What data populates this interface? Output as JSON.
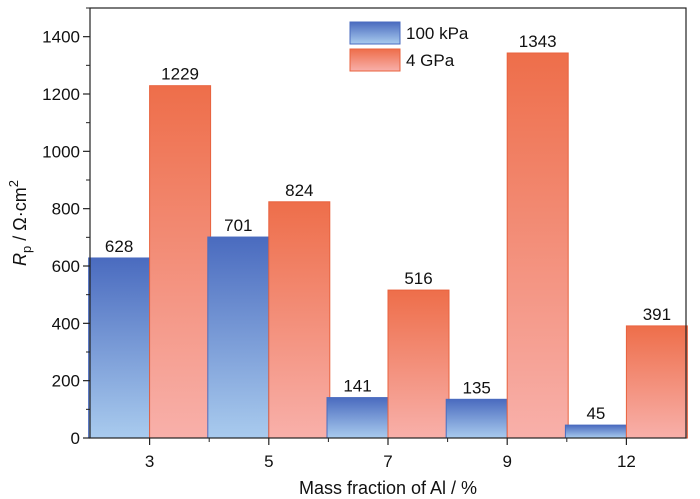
{
  "chart_data": {
    "type": "bar",
    "title": "",
    "xlabel": "Mass fraction of Al / %",
    "ylabel": {
      "symbol": "R",
      "subscript": "p",
      "unit": " / Ω·cm",
      "superscript": "2"
    },
    "categories": [
      "3",
      "5",
      "7",
      "9",
      "12"
    ],
    "ylim": [
      0,
      1500
    ],
    "yticks": [
      0,
      200,
      400,
      600,
      800,
      1000,
      1200,
      1400
    ],
    "grid": false,
    "legend_position": "top-center",
    "series": [
      {
        "name": "100 kPa",
        "values": [
          628,
          701,
          141,
          135,
          45
        ],
        "color_top": "#4a6bbf",
        "color_bottom": "#a9cbee",
        "stroke": "#4a6bbf"
      },
      {
        "name": "4 GPa",
        "values": [
          1229,
          824,
          516,
          1343,
          391
        ],
        "color_top": "#ee6e4a",
        "color_bottom": "#f8b0aa",
        "stroke": "#e8623e"
      }
    ]
  }
}
